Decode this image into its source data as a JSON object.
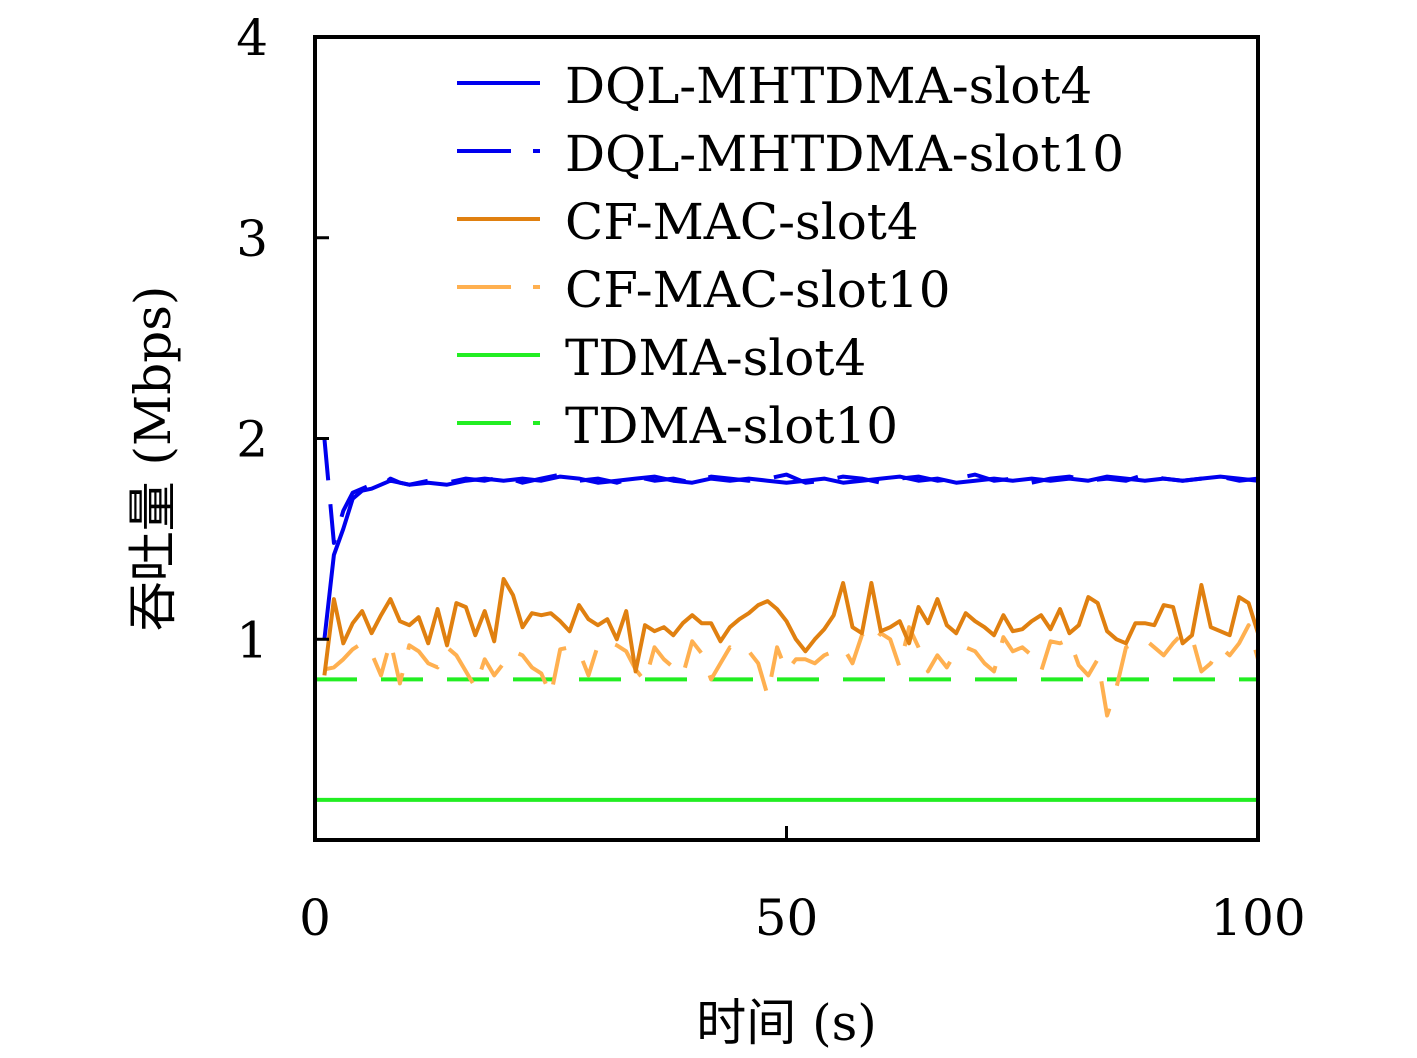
{
  "chart_data": {
    "type": "line",
    "title": "",
    "xlabel": "时间 (s)",
    "ylabel": "吞吐量 (Mbps)",
    "xlim": [
      0,
      100
    ],
    "ylim": [
      0,
      4
    ],
    "xticks": [
      0,
      50,
      100
    ],
    "yticks": [
      1,
      2,
      3,
      4
    ],
    "xtick_labels": [
      "0",
      "50",
      "100"
    ],
    "ytick_labels": [
      "1",
      "2",
      "3",
      "4"
    ],
    "grid": false,
    "legend_position": "top-right",
    "series": [
      {
        "name": "DQL-MHTDMA-slot4",
        "color": "#0000ee",
        "dash": "solid",
        "x": [
          1,
          2,
          3,
          4,
          5,
          6,
          7,
          8,
          9,
          10,
          12,
          14,
          16,
          18,
          20,
          22,
          24,
          26,
          28,
          30,
          32,
          34,
          36,
          38,
          40,
          42,
          44,
          46,
          48,
          50,
          52,
          54,
          56,
          58,
          60,
          62,
          64,
          66,
          68,
          70,
          72,
          74,
          76,
          78,
          80,
          82,
          84,
          86,
          88,
          90,
          92,
          94,
          96,
          98,
          100
        ],
        "y": [
          1.0,
          1.42,
          1.55,
          1.7,
          1.74,
          1.75,
          1.77,
          1.79,
          1.78,
          1.77,
          1.78,
          1.77,
          1.79,
          1.8,
          1.79,
          1.8,
          1.79,
          1.81,
          1.8,
          1.78,
          1.79,
          1.8,
          1.81,
          1.79,
          1.78,
          1.8,
          1.79,
          1.8,
          1.79,
          1.78,
          1.79,
          1.8,
          1.78,
          1.79,
          1.8,
          1.81,
          1.79,
          1.8,
          1.78,
          1.79,
          1.8,
          1.79,
          1.8,
          1.79,
          1.8,
          1.79,
          1.81,
          1.8,
          1.79,
          1.8,
          1.79,
          1.8,
          1.81,
          1.8,
          1.79
        ]
      },
      {
        "name": "DQL-MHTDMA-slot10",
        "color": "#0000ee",
        "dash": "dashed",
        "x": [
          1,
          2,
          3,
          4,
          5,
          6,
          7,
          8,
          9,
          10,
          12,
          14,
          16,
          18,
          20,
          22,
          24,
          26,
          28,
          30,
          32,
          34,
          36,
          38,
          40,
          42,
          44,
          46,
          48,
          50,
          52,
          54,
          56,
          58,
          60,
          62,
          64,
          66,
          68,
          70,
          72,
          74,
          76,
          78,
          80,
          82,
          84,
          86,
          88,
          90,
          92,
          94,
          96,
          98,
          100
        ],
        "y": [
          2.0,
          1.48,
          1.64,
          1.73,
          1.75,
          1.77,
          1.76,
          1.8,
          1.78,
          1.77,
          1.79,
          1.78,
          1.8,
          1.79,
          1.81,
          1.78,
          1.8,
          1.82,
          1.79,
          1.8,
          1.78,
          1.81,
          1.79,
          1.8,
          1.78,
          1.81,
          1.8,
          1.79,
          1.8,
          1.82,
          1.78,
          1.79,
          1.81,
          1.8,
          1.78,
          1.8,
          1.81,
          1.79,
          1.8,
          1.82,
          1.79,
          1.8,
          1.78,
          1.8,
          1.81,
          1.79,
          1.8,
          1.79,
          1.82,
          1.8,
          1.79,
          1.8,
          1.81,
          1.79,
          1.8
        ]
      },
      {
        "name": "CF-MAC-slot4",
        "color": "#e08010",
        "dash": "solid",
        "x": [
          1,
          2,
          3,
          4,
          5,
          6,
          7,
          8,
          9,
          10,
          11,
          12,
          13,
          14,
          15,
          16,
          17,
          18,
          19,
          20,
          21,
          22,
          23,
          24,
          25,
          26,
          27,
          28,
          29,
          30,
          31,
          32,
          33,
          34,
          35,
          36,
          37,
          38,
          39,
          40,
          41,
          42,
          43,
          44,
          45,
          46,
          47,
          48,
          49,
          50,
          51,
          52,
          53,
          54,
          55,
          56,
          57,
          58,
          59,
          60,
          61,
          62,
          63,
          64,
          65,
          66,
          67,
          68,
          69,
          70,
          71,
          72,
          73,
          74,
          75,
          76,
          77,
          78,
          79,
          80,
          81,
          82,
          83,
          84,
          85,
          86,
          87,
          88,
          89,
          90,
          91,
          92,
          93,
          94,
          95,
          96,
          97,
          98,
          99,
          100
        ],
        "y": [
          0.82,
          1.2,
          0.98,
          1.08,
          1.14,
          1.03,
          1.12,
          1.2,
          1.09,
          1.07,
          1.11,
          0.98,
          1.15,
          0.97,
          1.18,
          1.16,
          1.02,
          1.14,
          0.99,
          1.3,
          1.22,
          1.06,
          1.13,
          1.12,
          1.13,
          1.09,
          1.04,
          1.17,
          1.1,
          1.07,
          1.1,
          1.0,
          1.14,
          0.84,
          1.07,
          1.04,
          1.06,
          1.02,
          1.08,
          1.12,
          1.08,
          1.08,
          0.99,
          1.06,
          1.1,
          1.13,
          1.17,
          1.19,
          1.15,
          1.09,
          1.0,
          0.94,
          1.0,
          1.05,
          1.12,
          1.28,
          1.06,
          1.03,
          1.28,
          1.04,
          1.06,
          1.09,
          0.98,
          1.16,
          1.08,
          1.2,
          1.07,
          1.03,
          1.13,
          1.09,
          1.06,
          1.02,
          1.12,
          1.04,
          1.05,
          1.09,
          1.12,
          1.05,
          1.15,
          1.03,
          1.07,
          1.21,
          1.18,
          1.04,
          1.0,
          0.98,
          1.08,
          1.08,
          1.07,
          1.17,
          1.16,
          0.98,
          1.02,
          1.27,
          1.06,
          1.04,
          1.02,
          1.21,
          1.18,
          1.03
        ]
      },
      {
        "name": "CF-MAC-slot10",
        "color": "#ffb050",
        "dash": "dashed",
        "x": [
          1,
          2,
          3,
          4,
          5,
          6,
          7,
          8,
          9,
          10,
          11,
          12,
          13,
          14,
          15,
          16,
          17,
          18,
          19,
          20,
          21,
          22,
          23,
          24,
          25,
          26,
          27,
          28,
          29,
          30,
          31,
          32,
          33,
          34,
          35,
          36,
          37,
          38,
          39,
          40,
          41,
          42,
          43,
          44,
          45,
          46,
          47,
          48,
          49,
          50,
          51,
          52,
          53,
          54,
          55,
          56,
          57,
          58,
          59,
          60,
          61,
          62,
          63,
          64,
          65,
          66,
          67,
          68,
          69,
          70,
          71,
          72,
          73,
          74,
          75,
          76,
          77,
          78,
          79,
          80,
          81,
          82,
          83,
          84,
          85,
          86,
          87,
          88,
          89,
          90,
          91,
          92,
          93,
          94,
          95,
          96,
          97,
          98,
          99,
          100
        ],
        "y": [
          0.85,
          0.86,
          0.9,
          0.95,
          0.98,
          0.93,
          0.82,
          0.99,
          0.78,
          0.97,
          0.94,
          0.88,
          0.86,
          0.96,
          0.92,
          0.84,
          0.76,
          0.9,
          0.82,
          0.88,
          0.94,
          0.92,
          0.86,
          0.83,
          0.72,
          0.95,
          0.96,
          0.94,
          0.82,
          0.97,
          0.99,
          0.97,
          0.94,
          0.85,
          0.79,
          0.96,
          0.9,
          0.86,
          0.82,
          0.99,
          0.93,
          0.8,
          0.88,
          0.96,
          0.92,
          0.94,
          0.88,
          0.72,
          0.96,
          0.84,
          0.9,
          0.9,
          0.88,
          0.92,
          0.94,
          0.96,
          0.88,
          1.02,
          0.97,
          1.03,
          1.0,
          0.86,
          1.06,
          0.96,
          0.84,
          0.92,
          0.86,
          0.94,
          0.96,
          0.94,
          0.88,
          0.84,
          1.01,
          0.94,
          0.96,
          0.92,
          0.84,
          0.99,
          0.98,
          1.0,
          0.87,
          0.82,
          0.9,
          0.62,
          0.76,
          0.96,
          0.98,
          1.0,
          0.96,
          0.92,
          0.98,
          1.03,
          1.01,
          0.84,
          0.88,
          0.96,
          0.92,
          0.98,
          1.07,
          0.9
        ]
      },
      {
        "name": "TDMA-slot4",
        "color": "#22ee22",
        "dash": "solid",
        "x": [
          0,
          100
        ],
        "y": [
          0.2,
          0.2
        ]
      },
      {
        "name": "TDMA-slot10",
        "color": "#22ee22",
        "dash": "dashed",
        "x": [
          0,
          100
        ],
        "y": [
          0.8,
          0.8
        ]
      }
    ]
  }
}
